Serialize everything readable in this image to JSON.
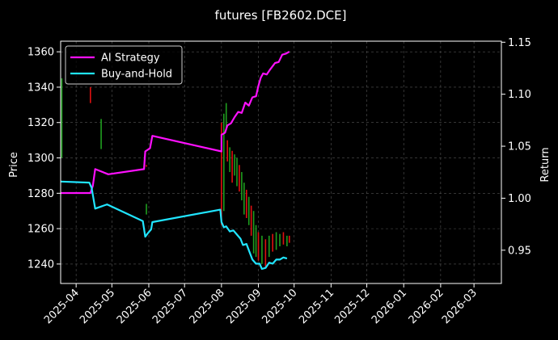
{
  "chart_data": {
    "type": "line",
    "title": "futures [FB2602.DCE]",
    "ylabel": "Price",
    "y2label": "Return",
    "xlim": [
      "2025-03-19",
      "2026-03-24"
    ],
    "ylim": [
      1229,
      1366
    ],
    "y2lim": [
      0.918,
      1.151
    ],
    "x_ticks": [
      "2025-04",
      "2025-05",
      "2025-06",
      "2025-07",
      "2025-08",
      "2025-09",
      "2025-10",
      "2025-11",
      "2025-12",
      "2026-01",
      "2026-02",
      "2026-03"
    ],
    "y_ticks": [
      1240,
      1260,
      1280,
      1300,
      1320,
      1340,
      1360
    ],
    "y2_ticks": [
      0.95,
      1.0,
      1.05,
      1.1,
      1.15
    ],
    "y2_tick_labels": [
      "0.95",
      "1.00",
      "1.05",
      "1.10",
      "1.15"
    ],
    "grid": true,
    "legend_position": "top-left",
    "colors": {
      "background": "#000000",
      "up": "#1f9e1f",
      "down": "#e01010",
      "ai": "#ff10ff",
      "bh": "#20e5ff",
      "grid": "#555555"
    },
    "series": [
      {
        "name": "AI Strategy",
        "color": "#ff10ff",
        "axis": "return",
        "points": [
          [
            "2025-03-19",
            1.005
          ],
          [
            "2025-04-13",
            1.005
          ],
          [
            "2025-04-15",
            1.012
          ],
          [
            "2025-04-17",
            1.028
          ],
          [
            "2025-04-28",
            1.023
          ],
          [
            "2025-05-28",
            1.028
          ],
          [
            "2025-05-29",
            1.045
          ],
          [
            "2025-06-02",
            1.048
          ],
          [
            "2025-06-04",
            1.06
          ],
          [
            "2025-08-01",
            1.045
          ],
          [
            "2025-08-01",
            1.061
          ],
          [
            "2025-08-04",
            1.063
          ],
          [
            "2025-08-06",
            1.07
          ],
          [
            "2025-08-09",
            1.072
          ],
          [
            "2025-08-12",
            1.078
          ],
          [
            "2025-08-15",
            1.083
          ],
          [
            "2025-08-18",
            1.082
          ],
          [
            "2025-08-21",
            1.092
          ],
          [
            "2025-08-24",
            1.089
          ],
          [
            "2025-08-27",
            1.097
          ],
          [
            "2025-08-30",
            1.098
          ],
          [
            "2025-09-01",
            1.108
          ],
          [
            "2025-09-03",
            1.116
          ],
          [
            "2025-09-05",
            1.12
          ],
          [
            "2025-09-08",
            1.119
          ],
          [
            "2025-09-11",
            1.124
          ],
          [
            "2025-09-15",
            1.13
          ],
          [
            "2025-09-18",
            1.131
          ],
          [
            "2025-09-21",
            1.138
          ],
          [
            "2025-09-24",
            1.139
          ],
          [
            "2025-09-27",
            1.141
          ]
        ]
      },
      {
        "name": "Buy-and-Hold",
        "color": "#20e5ff",
        "axis": "return",
        "points": [
          [
            "2025-03-19",
            1.016
          ],
          [
            "2025-04-12",
            1.015
          ],
          [
            "2025-04-14",
            1.01
          ],
          [
            "2025-04-17",
            0.99
          ],
          [
            "2025-04-27",
            0.994
          ],
          [
            "2025-05-27",
            0.978
          ],
          [
            "2025-05-29",
            0.963
          ],
          [
            "2025-05-31",
            0.966
          ],
          [
            "2025-06-03",
            0.97
          ],
          [
            "2025-06-04",
            0.977
          ],
          [
            "2025-07-31",
            0.989
          ],
          [
            "2025-08-01",
            0.977
          ],
          [
            "2025-08-03",
            0.972
          ],
          [
            "2025-08-05",
            0.973
          ],
          [
            "2025-08-08",
            0.968
          ],
          [
            "2025-08-11",
            0.969
          ],
          [
            "2025-08-14",
            0.965
          ],
          [
            "2025-08-17",
            0.961
          ],
          [
            "2025-08-19",
            0.955
          ],
          [
            "2025-08-22",
            0.956
          ],
          [
            "2025-08-24",
            0.95
          ],
          [
            "2025-08-27",
            0.941
          ],
          [
            "2025-08-30",
            0.937
          ],
          [
            "2025-09-02",
            0.937
          ],
          [
            "2025-09-04",
            0.932
          ],
          [
            "2025-09-07",
            0.933
          ],
          [
            "2025-09-10",
            0.938
          ],
          [
            "2025-09-13",
            0.937
          ],
          [
            "2025-09-16",
            0.941
          ],
          [
            "2025-09-19",
            0.941
          ],
          [
            "2025-09-22",
            0.943
          ],
          [
            "2025-09-25",
            0.942
          ]
        ]
      }
    ],
    "candles": [
      [
        "2025-03-20",
        1345,
        1300,
        "up"
      ],
      [
        "2025-04-13",
        1340,
        1331,
        "down"
      ],
      [
        "2025-04-22",
        1322,
        1305,
        "up"
      ],
      [
        "2025-05-30",
        1296,
        1295,
        "down"
      ],
      [
        "2025-05-30",
        1274,
        1268,
        "up"
      ],
      [
        "2025-08-01",
        1320,
        1262,
        "down"
      ],
      [
        "2025-08-03",
        1325,
        1270,
        "up"
      ],
      [
        "2025-08-05",
        1331,
        1316,
        "up"
      ],
      [
        "2025-08-06",
        1310,
        1298,
        "down"
      ],
      [
        "2025-08-08",
        1306,
        1292,
        "up"
      ],
      [
        "2025-08-10",
        1304,
        1286,
        "down"
      ],
      [
        "2025-08-12",
        1302,
        1290,
        "up"
      ],
      [
        "2025-08-14",
        1300,
        1284,
        "up"
      ],
      [
        "2025-08-16",
        1296,
        1281,
        "down"
      ],
      [
        "2025-08-18",
        1292,
        1276,
        "up"
      ],
      [
        "2025-08-20",
        1286,
        1268,
        "up"
      ],
      [
        "2025-08-22",
        1282,
        1266,
        "down"
      ],
      [
        "2025-08-24",
        1278,
        1262,
        "up"
      ],
      [
        "2025-08-26",
        1273,
        1256,
        "down"
      ],
      [
        "2025-08-28",
        1270,
        1246,
        "up"
      ],
      [
        "2025-08-30",
        1262,
        1244,
        "up"
      ],
      [
        "2025-09-01",
        1258,
        1242,
        "down"
      ],
      [
        "2025-09-04",
        1256,
        1240,
        "up"
      ],
      [
        "2025-09-07",
        1254,
        1238,
        "down"
      ],
      [
        "2025-09-10",
        1256,
        1244,
        "up"
      ],
      [
        "2025-09-13",
        1257,
        1247,
        "down"
      ],
      [
        "2025-09-16",
        1258,
        1248,
        "up"
      ],
      [
        "2025-09-19",
        1257,
        1250,
        "up"
      ],
      [
        "2025-09-22",
        1258,
        1251,
        "down"
      ],
      [
        "2025-09-25",
        1256,
        1250,
        "up"
      ],
      [
        "2025-09-27",
        1256,
        1252,
        "down"
      ]
    ]
  }
}
